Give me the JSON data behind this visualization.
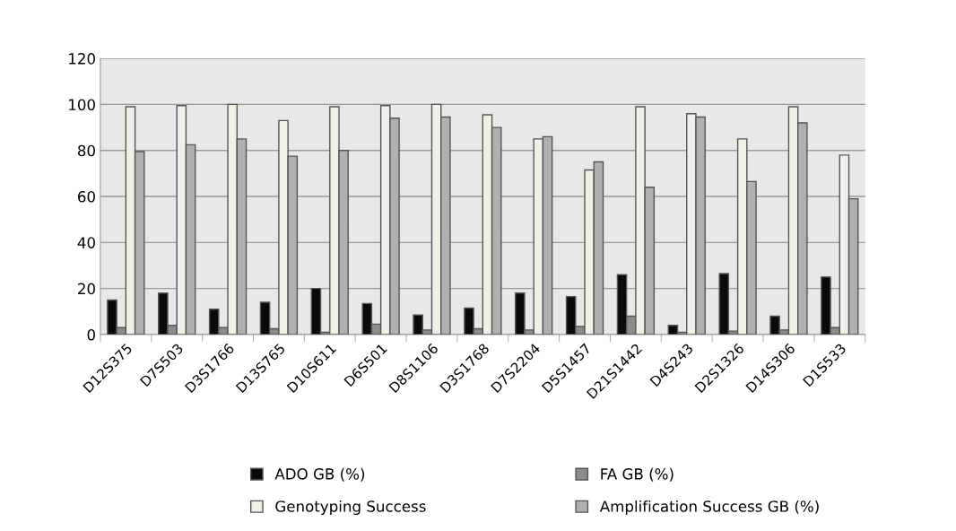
{
  "chart_data": {
    "type": "bar",
    "categories": [
      "D12S375",
      "D7S503",
      "D3S1766",
      "D13S765",
      "D10S611",
      "D6S501",
      "D8S1106",
      "D3S1768",
      "D7S2204",
      "D5S1457",
      "D21S1442",
      "D4S243",
      "D2S1326",
      "D14S306",
      "D1S533"
    ],
    "series": [
      {
        "name": "ADO GB (%)",
        "color": "#0a0a0a",
        "values": [
          15,
          18,
          11,
          14,
          20,
          13.5,
          8.5,
          11.5,
          18,
          16.5,
          26,
          4,
          26.5,
          8,
          25
        ]
      },
      {
        "name": "FA GB (%)",
        "color": "#8c8c8c",
        "values": [
          3,
          4,
          3,
          2.5,
          1,
          4.5,
          2,
          2.5,
          2,
          3.5,
          8,
          1,
          1.5,
          2,
          3
        ]
      },
      {
        "name": "Genotyping Success",
        "color": "#f0f0e8",
        "values": [
          99,
          99.5,
          100,
          93,
          99,
          99.5,
          100,
          95.5,
          85,
          71.5,
          99,
          96,
          85,
          99,
          78
        ]
      },
      {
        "name": "Amplification Success GB (%)",
        "color": "#b0b0b0",
        "values": [
          79.5,
          82.5,
          85,
          77.5,
          80,
          94,
          94.5,
          90,
          86,
          75,
          64,
          94.5,
          66.5,
          92,
          59
        ]
      }
    ],
    "ylim": [
      0,
      120
    ],
    "yticks": [
      0,
      20,
      40,
      60,
      80,
      100,
      120
    ],
    "grid": "y",
    "legend": "bottom"
  }
}
